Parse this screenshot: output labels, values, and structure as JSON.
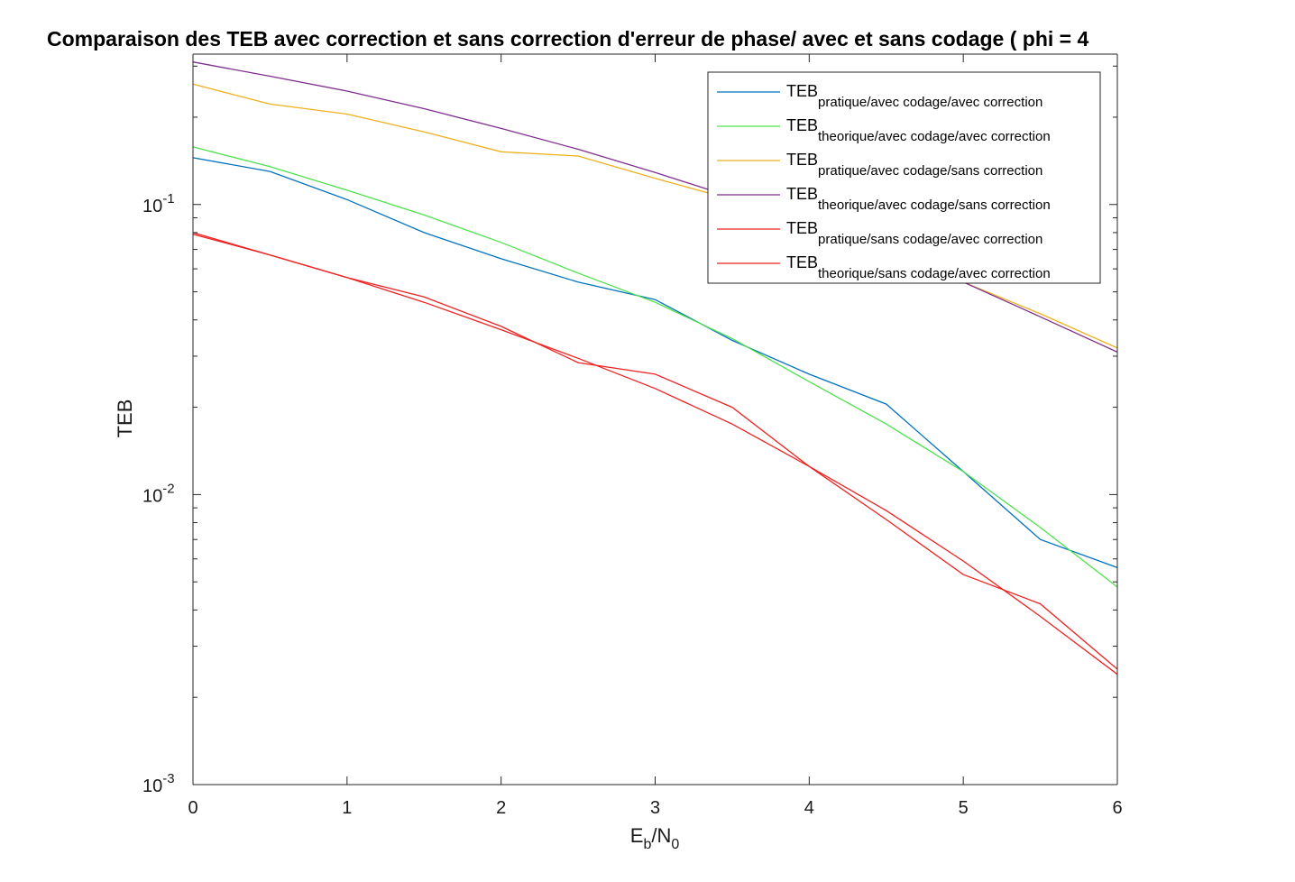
{
  "chart_data": {
    "type": "line",
    "title": "Comparaison des TEB avec correction et sans correction d'erreur de phase/ avec et sans codage ( phi = 4",
    "xlabel": {
      "main": "E",
      "sub1": "b",
      "mid": "/N",
      "sub2": "0"
    },
    "ylabel": "TEB",
    "xlim": [
      0,
      6
    ],
    "ylim": [
      0.001,
      0.33
    ],
    "yscale": "log",
    "grid": false,
    "legend_position": "top-right",
    "x_ticks": [
      0,
      1,
      2,
      3,
      4,
      5,
      6
    ],
    "x_tick_labels": [
      "0",
      "1",
      "2",
      "3",
      "4",
      "5",
      "6"
    ],
    "y_ticks": [
      0.001,
      0.01,
      0.1
    ],
    "y_tick_labels": [
      {
        "base": "10",
        "exp": "-3"
      },
      {
        "base": "10",
        "exp": "-2"
      },
      {
        "base": "10",
        "exp": "-1"
      }
    ],
    "x": [
      0,
      0.5,
      1,
      1.5,
      2,
      2.5,
      3,
      3.5,
      4,
      4.5,
      5,
      5.5,
      6
    ],
    "series": [
      {
        "name": {
          "main": "TEB",
          "sub": "pratique/avec codage/avec correction"
        },
        "color": "#0072bd",
        "values": [
          0.145,
          0.13,
          0.104,
          0.08,
          0.065,
          0.054,
          0.047,
          0.034,
          0.026,
          0.0205,
          0.012,
          0.007,
          0.0056
        ]
      },
      {
        "name": {
          "main": "TEB",
          "sub": "theorique/avec codage/avec correction"
        },
        "color": "#4de34d",
        "values": [
          0.158,
          0.135,
          0.112,
          0.092,
          0.074,
          0.058,
          0.046,
          0.0345,
          0.0245,
          0.0175,
          0.012,
          0.0077,
          0.0048
        ]
      },
      {
        "name": {
          "main": "TEB",
          "sub": "pratique/avec codage/sans correction"
        },
        "color": "#edb120",
        "values": [
          0.26,
          0.222,
          0.205,
          0.178,
          0.152,
          0.147,
          0.123,
          0.104,
          0.088,
          0.071,
          0.054,
          0.042,
          0.032
        ]
      },
      {
        "name": {
          "main": "TEB",
          "sub": "theorique/avec codage/sans correction"
        },
        "color": "#7e2f8e",
        "values": [
          0.31,
          0.277,
          0.246,
          0.214,
          0.183,
          0.155,
          0.129,
          0.106,
          0.087,
          0.07,
          0.054,
          0.041,
          0.031
        ]
      },
      {
        "name": {
          "main": "TEB",
          "sub": "pratique/sans codage/avec correction"
        },
        "color": "#ee2222",
        "values": [
          0.08,
          0.067,
          0.056,
          0.048,
          0.038,
          0.0285,
          0.026,
          0.02,
          0.0125,
          0.0082,
          0.0053,
          0.0042,
          0.0025
        ]
      },
      {
        "name": {
          "main": "TEB",
          "sub": "theorique/sans codage/avec correction"
        },
        "color": "#ee2222",
        "values": [
          0.079,
          0.067,
          0.056,
          0.046,
          0.037,
          0.0295,
          0.0232,
          0.0175,
          0.0125,
          0.0088,
          0.0059,
          0.0038,
          0.0024
        ]
      }
    ]
  }
}
